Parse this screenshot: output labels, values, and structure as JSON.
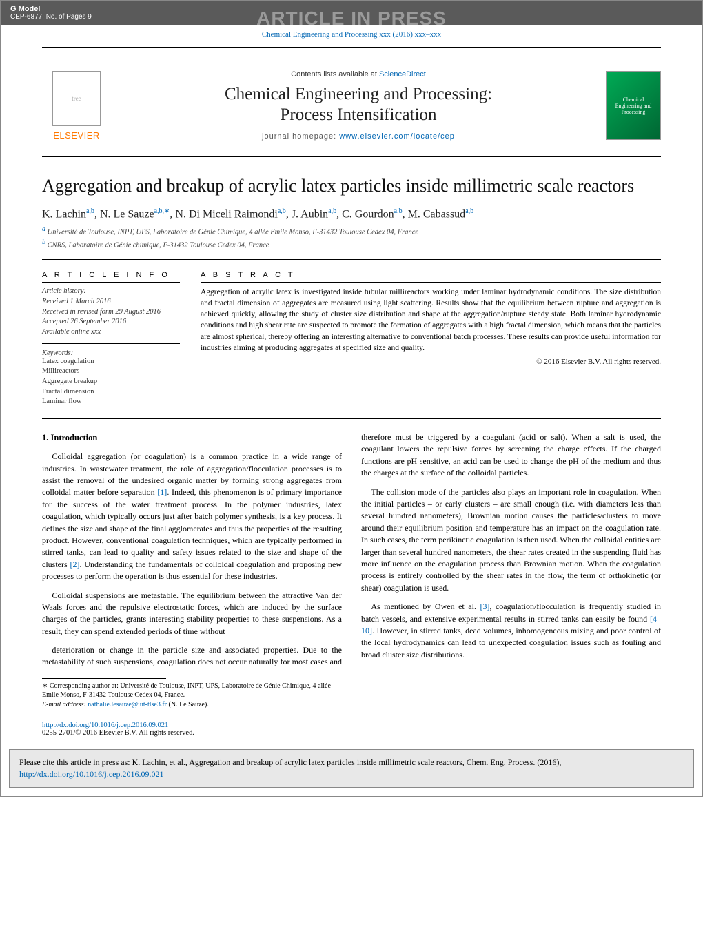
{
  "topbar": {
    "gmodel": "G Model",
    "cep": "CEP-6877;  No. of Pages 9",
    "aip": "ARTICLE IN PRESS"
  },
  "journal_ref": "Chemical Engineering and Processing xxx (2016) xxx–xxx",
  "header": {
    "contents": "Contents lists available at ",
    "sciencedirect": "ScienceDirect",
    "title_l1": "Chemical Engineering and Processing:",
    "title_l2": "Process Intensification",
    "homepage_lbl": "journal homepage: ",
    "homepage_url": "www.elsevier.com/locate/cep",
    "elsevier": "ELSEVIER",
    "cover_text": "Chemical Engineering and Processing"
  },
  "article": {
    "title": "Aggregation and breakup of acrylic latex particles inside millimetric scale reactors",
    "authors_html": "K. Lachin",
    "aff_a": "a,b",
    "a1_name": "K. Lachin",
    "a2_name": "N. Le Sauze",
    "a2_star": "∗",
    "a3_name": "N. Di Miceli Raimondi",
    "a4_name": "J. Aubin",
    "a5_name": "C. Gourdon",
    "a6_name": "M. Cabassud",
    "affil_a": "Université de Toulouse, INPT, UPS, Laboratoire de Génie Chimique, 4 allée Emile Monso, F-31432 Toulouse Cedex 04, France",
    "affil_b": "CNRS, Laboratoire de Génie chimique, F-31432 Toulouse Cedex 04, France"
  },
  "info": {
    "head": "a r t i c l e    i n f o",
    "history_lbl": "Article history:",
    "h1": "Received 1 March 2016",
    "h2": "Received in revised form 29 August 2016",
    "h3": "Accepted 26 September 2016",
    "h4": "Available online xxx",
    "kw_lbl": "Keywords:",
    "kw1": "Latex coagulation",
    "kw2": "Millireactors",
    "kw3": "Aggregate breakup",
    "kw4": "Fractal dimension",
    "kw5": "Laminar flow"
  },
  "abstract": {
    "head": "a b s t r a c t",
    "text": "Aggregation of acrylic latex is investigated inside tubular millireactors working under laminar hydrodynamic conditions. The size distribution and fractal dimension of aggregates are measured using light scattering. Results show that the equilibrium between rupture and aggregation is achieved quickly, allowing the study of cluster size distribution and shape at the aggregation/rupture steady state. Both laminar hydrodynamic conditions and high shear rate are suspected to promote the formation of aggregates with a high fractal dimension, which means that the particles are almost spherical, thereby offering an interesting alternative to conventional batch processes. These results can provide useful information for industries aiming at producing aggregates at specified size and quality.",
    "copyright": "© 2016 Elsevier B.V. All rights reserved."
  },
  "body": {
    "h_intro": "1. Introduction",
    "p1a": "Colloidal aggregation (or coagulation) is a common practice in a wide range of industries. In wastewater treatment, the role of aggregation/flocculation processes is to assist the removal of the undesired organic matter by forming strong aggregates from colloidal matter before separation ",
    "ref1": "[1]",
    "p1b": ". Indeed, this phenomenon is of primary importance for the success of the water treatment process. In the polymer industries, latex coagulation, which typically occurs just after batch polymer synthesis, is a key process. It defines the size and shape of the final agglomerates and thus the properties of the resulting product. However, conventional coagulation techniques, which are typically performed in stirred tanks, can lead to quality and safety issues related to the size and shape of the clusters ",
    "ref2": "[2]",
    "p1c": ". Understanding the fundamentals of colloidal coagulation and proposing new processes to perform the operation is thus essential for these industries.",
    "p2": "Colloidal suspensions are metastable. The equilibrium between the attractive Van der Waals forces and the repulsive electrostatic forces, which are induced by the surface charges of the particles, grants interesting stability properties to these suspensions. As a result, they can spend extended periods of time without",
    "p3": "deterioration or change in the particle size and associated properties. Due to the metastability of such suspensions, coagulation does not occur naturally for most cases and therefore must be triggered by a coagulant (acid or salt). When a salt is used, the coagulant lowers the repulsive forces by screening the charge effects. If the charged functions are pH sensitive, an acid can be used to change the pH of the medium and thus the charges at the surface of the colloidal particles.",
    "p4": "The collision mode of the particles also plays an important role in coagulation. When the initial particles – or early clusters – are small enough (i.e. with diameters less than several hundred nanometers), Brownian motion causes the particles/clusters to move around their equilibrium position and temperature has an impact on the coagulation rate. In such cases, the term perikinetic coagulation is then used. When the colloidal entities are larger than several hundred nanometers, the shear rates created in the suspending fluid has more influence on the coagulation process than Brownian motion. When the coagulation process is entirely controlled by the shear rates in the flow, the term of orthokinetic (or shear) coagulation is used.",
    "p5a": "As mentioned by Owen et al. ",
    "ref3": "[3]",
    "p5b": ", coagulation/flocculation is frequently studied in batch vessels, and extensive experimental results in stirred tanks can easily be found ",
    "ref4": "[4–10]",
    "p5c": ". However, in stirred tanks, dead volumes, inhomogeneous mixing and poor control of the local hydrodynamics can lead to unexpected coagulation issues such as fouling and broad cluster size distributions."
  },
  "footnotes": {
    "corr": "∗ Corresponding author at: Université de Toulouse, INPT, UPS, Laboratoire de Génie Chimique, 4 allée Emile Monso, F-31432 Toulouse Cedex 04, France.",
    "email_lbl": "E-mail address: ",
    "email": "nathalie.lesauze@iut-tlse3.fr",
    "email_who": " (N. Le Sauze)."
  },
  "doi": {
    "url": "http://dx.doi.org/10.1016/j.cep.2016.09.021",
    "issn": "0255-2701/© 2016 Elsevier B.V. All rights reserved."
  },
  "citebox": {
    "text": "Please cite this article in press as: K. Lachin, et al., Aggregation and breakup of acrylic latex particles inside millimetric scale reactors, Chem. Eng. Process. (2016), ",
    "doi": "http://dx.doi.org/10.1016/j.cep.2016.09.021"
  },
  "colors": {
    "link": "#0066b3",
    "banner_bg": "#5a5a5a",
    "aip_text": "#9a9a9a",
    "elsevier_orange": "#ff7800",
    "cite_bg": "#e8e8e8"
  }
}
